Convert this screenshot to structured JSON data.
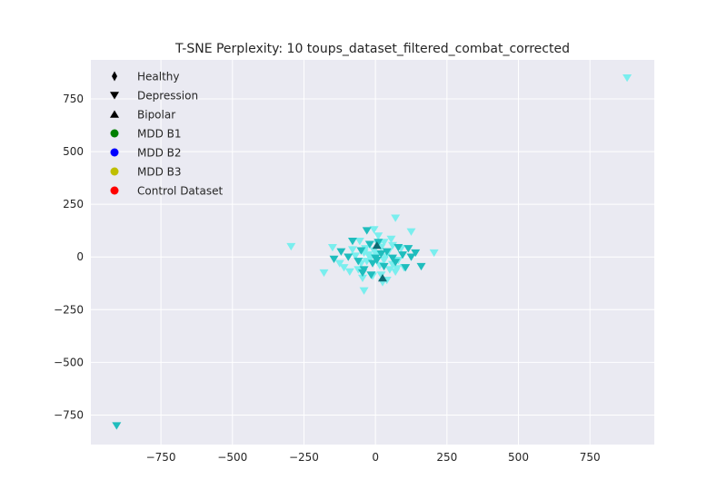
{
  "chart_data": {
    "type": "scatter",
    "title": "T-SNE Perplexity: 10 toups_dataset_filtered_combat_corrected",
    "xlabel": "",
    "ylabel": "",
    "xlim": [
      -995,
      975
    ],
    "ylim": [
      -890,
      935
    ],
    "xticks": [
      -750,
      -500,
      -250,
      0,
      250,
      500,
      750
    ],
    "yticks": [
      -750,
      -500,
      -250,
      0,
      250,
      500,
      750
    ],
    "xtick_labels": [
      "−750",
      "−500",
      "−250",
      "0",
      "250",
      "500",
      "750"
    ],
    "ytick_labels": [
      "−750",
      "−500",
      "−250",
      "0",
      "250",
      "500",
      "750"
    ],
    "grid": true,
    "legend_position": "upper-left",
    "legend": [
      {
        "label": "Healthy",
        "marker": "diamond",
        "color": "#000000"
      },
      {
        "label": "Depression",
        "marker": "triangle-down",
        "color": "#000000"
      },
      {
        "label": "Bipolar",
        "marker": "triangle-up",
        "color": "#000000"
      },
      {
        "label": "MDD B1",
        "marker": "circle",
        "color": "#008000"
      },
      {
        "label": "MDD B2",
        "marker": "circle",
        "color": "#0000ff"
      },
      {
        "label": "MDD B3",
        "marker": "circle",
        "color": "#bfbf00"
      },
      {
        "label": "Control Dataset",
        "marker": "circle",
        "color": "#ff0000"
      }
    ],
    "colors": {
      "background": "#eaeaf2",
      "grid": "#ffffff",
      "light_cyan": "#7aeeee",
      "dark_teal": "#1fbdbd",
      "bipolar": "#0e6b73"
    },
    "series": [
      {
        "marker": "triangle-down",
        "color": "#7aeeee",
        "x": [
          880,
          -295,
          70,
          125,
          205,
          -180,
          -150,
          -125,
          -110,
          -90,
          -80,
          -70,
          -60,
          -55,
          -45,
          -40,
          -35,
          -30,
          -25,
          -20,
          -15,
          -10,
          -5,
          0,
          5,
          10,
          15,
          20,
          25,
          30,
          35,
          40,
          45,
          50,
          55,
          60,
          70,
          80,
          90,
          100,
          -5,
          20,
          -50,
          60,
          30,
          -40,
          10,
          75
        ],
        "y": [
          850,
          50,
          185,
          120,
          20,
          -75,
          45,
          -30,
          -50,
          -70,
          35,
          5,
          -60,
          75,
          -100,
          -160,
          40,
          -20,
          10,
          60,
          0,
          -90,
          30,
          -5,
          15,
          100,
          -40,
          45,
          -120,
          70,
          0,
          -110,
          25,
          -60,
          85,
          -35,
          -70,
          -15,
          40,
          -50,
          130,
          -85,
          -30,
          55,
          -15,
          20,
          60,
          -55
        ]
      },
      {
        "marker": "triangle-down",
        "color": "#1fbdbd",
        "x": [
          -905,
          -145,
          -120,
          -95,
          -80,
          -60,
          -50,
          -40,
          -30,
          -20,
          -10,
          0,
          10,
          20,
          30,
          40,
          60,
          70,
          80,
          95,
          105,
          115,
          125,
          140,
          160,
          -45,
          -15,
          5
        ],
        "y": [
          -800,
          -10,
          25,
          0,
          75,
          -20,
          30,
          -60,
          125,
          60,
          -30,
          -5,
          70,
          15,
          -45,
          25,
          -5,
          -25,
          45,
          10,
          -50,
          40,
          0,
          20,
          -45,
          -75,
          -85,
          -15
        ]
      },
      {
        "marker": "triangle-up",
        "color": "#0e6b73",
        "x": [
          5,
          25
        ],
        "y": [
          55,
          -100
        ]
      }
    ]
  }
}
